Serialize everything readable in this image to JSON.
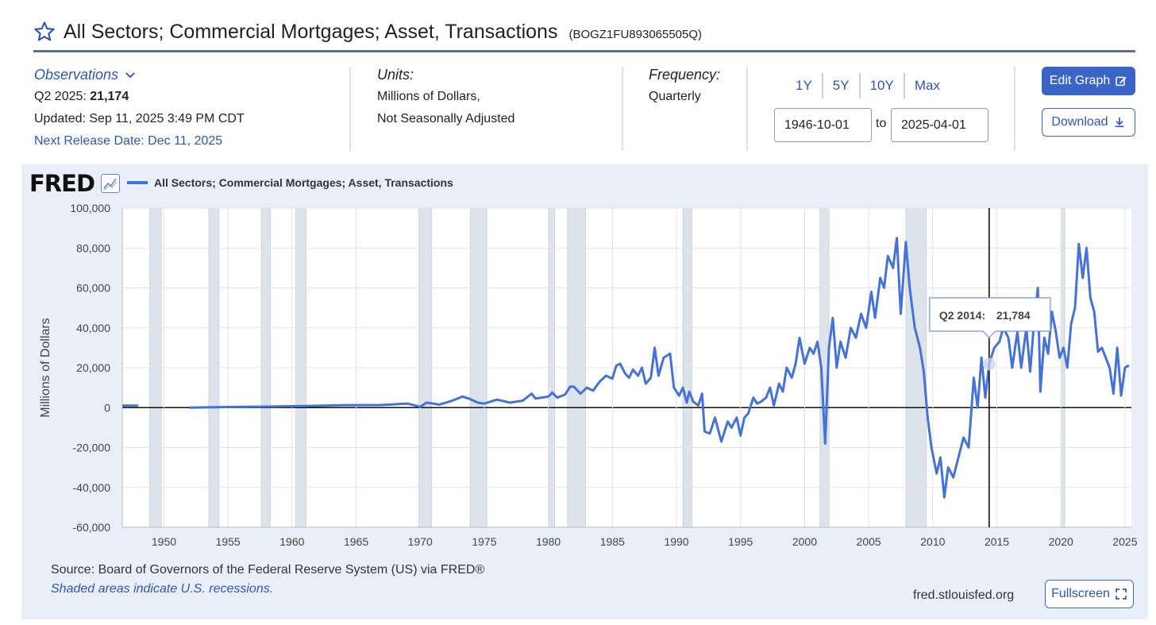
{
  "header": {
    "title": "All Sectors; Commercial Mortgages; Asset, Transactions",
    "series_id": "(BOGZ1FU893065505Q)"
  },
  "observations": {
    "label": "Observations",
    "period_label": "Q2 2025:",
    "value": "21,174",
    "updated": "Updated: Sep 11, 2025 3:49 PM CDT",
    "next_release": "Next Release Date: Dec 11, 2025"
  },
  "units": {
    "label": "Units:",
    "line1": "Millions of Dollars,",
    "line2": "Not Seasonally Adjusted"
  },
  "frequency": {
    "label": "Frequency:",
    "value": "Quarterly"
  },
  "range": {
    "buttons": [
      "1Y",
      "5Y",
      "10Y",
      "Max"
    ],
    "start": "1946-10-01",
    "to": "to",
    "end": "2025-04-01"
  },
  "actions": {
    "edit_graph": "Edit Graph",
    "download": "Download",
    "fullscreen": "Fullscreen"
  },
  "footer": {
    "source": "Source: Board of Governors of the Federal Reserve System (US) via FRED®",
    "shaded_note": "Shaded areas indicate U.S. recessions.",
    "site": "fred.stlouisfed.org"
  },
  "brand": {
    "logo": "FRED"
  },
  "colors": {
    "accent": "#3b64c8",
    "series": "#4472d8",
    "panel": "#e9eff9",
    "recession": "#dde3ea"
  },
  "chart_data": {
    "type": "line",
    "legend": "All Sectors; Commercial Mortgages; Asset, Transactions",
    "ylabel": "Millions of Dollars",
    "ylim": [
      -60000,
      100000
    ],
    "xlim": [
      1946.75,
      2025.5
    ],
    "yticks": [
      100000,
      80000,
      60000,
      40000,
      20000,
      0,
      -20000,
      -40000,
      -60000
    ],
    "ytick_labels": [
      "100,000",
      "80,000",
      "60,000",
      "40,000",
      "20,000",
      "0",
      "-20,000",
      "-40,000",
      "-60,000"
    ],
    "xticks": [
      1950,
      1955,
      1960,
      1965,
      1970,
      1975,
      1980,
      1985,
      1990,
      1995,
      2000,
      2005,
      2010,
      2015,
      2020,
      2025
    ],
    "xtick_labels": [
      "1950",
      "1955",
      "1960",
      "1965",
      "1970",
      "1975",
      "1980",
      "1985",
      "1990",
      "1995",
      "2000",
      "2005",
      "2010",
      "2015",
      "2020",
      "2025"
    ],
    "grid": true,
    "recessions": [
      [
        1948.9,
        1949.8
      ],
      [
        1953.5,
        1954.3
      ],
      [
        1957.6,
        1958.3
      ],
      [
        1960.3,
        1961.1
      ],
      [
        1969.9,
        1970.9
      ],
      [
        1973.9,
        1975.2
      ],
      [
        1980.0,
        1980.5
      ],
      [
        1981.5,
        1982.9
      ],
      [
        1990.5,
        1991.2
      ],
      [
        2001.2,
        2001.9
      ],
      [
        2007.9,
        2009.5
      ],
      [
        2020.0,
        2020.3
      ]
    ],
    "series": [
      {
        "segments": [
          [
            [
              1946.75,
              1000
            ],
            [
              1947.0,
              1000
            ],
            [
              1947.5,
              1000
            ],
            [
              1948.0,
              1000
            ]
          ],
          [
            [
              1952.0,
              0
            ],
            [
              1955.0,
              300
            ],
            [
              1958.0,
              500
            ],
            [
              1961.0,
              800
            ],
            [
              1964.0,
              1200
            ],
            [
              1967.0,
              1300
            ],
            [
              1969.0,
              2000
            ],
            [
              1970.0,
              400
            ],
            [
              1970.5,
              2500
            ],
            [
              1971.5,
              1500
            ],
            [
              1972.5,
              3500
            ],
            [
              1973.3,
              5500
            ],
            [
              1973.8,
              4500
            ],
            [
              1974.5,
              2500
            ],
            [
              1975.0,
              2000
            ],
            [
              1976.0,
              4000
            ],
            [
              1977.0,
              2500
            ],
            [
              1978.0,
              3500
            ],
            [
              1978.7,
              7000
            ],
            [
              1979.0,
              4500
            ],
            [
              1980.0,
              5500
            ],
            [
              1980.3,
              7500
            ],
            [
              1980.7,
              5000
            ],
            [
              1981.3,
              6500
            ],
            [
              1981.7,
              10500
            ],
            [
              1982.0,
              10500
            ],
            [
              1982.5,
              7000
            ],
            [
              1983.0,
              10000
            ],
            [
              1983.5,
              8500
            ],
            [
              1984.0,
              13000
            ],
            [
              1984.5,
              16000
            ],
            [
              1985.0,
              14500
            ],
            [
              1985.3,
              21000
            ],
            [
              1985.6,
              22000
            ],
            [
              1986.0,
              17000
            ],
            [
              1986.3,
              15000
            ],
            [
              1986.6,
              19000
            ],
            [
              1987.0,
              16000
            ],
            [
              1987.3,
              20000
            ],
            [
              1987.6,
              12000
            ],
            [
              1988.0,
              15000
            ],
            [
              1988.3,
              30000
            ],
            [
              1988.6,
              16000
            ],
            [
              1989.0,
              25000
            ],
            [
              1989.5,
              27000
            ],
            [
              1989.8,
              10000
            ],
            [
              1990.2,
              6000
            ],
            [
              1990.5,
              10000
            ],
            [
              1990.8,
              2500
            ],
            [
              1991.0,
              8000
            ],
            [
              1991.3,
              3000
            ],
            [
              1991.7,
              1000
            ],
            [
              1992.0,
              7000
            ],
            [
              1992.2,
              -12000
            ],
            [
              1992.6,
              -13000
            ],
            [
              1993.0,
              -5000
            ],
            [
              1993.5,
              -17000
            ],
            [
              1994.0,
              -7000
            ],
            [
              1994.3,
              -10000
            ],
            [
              1994.7,
              -5000
            ],
            [
              1995.0,
              -14000
            ],
            [
              1995.3,
              -5000
            ],
            [
              1995.6,
              -3000
            ],
            [
              1996.0,
              5000
            ],
            [
              1996.3,
              2000
            ],
            [
              1996.6,
              3000
            ],
            [
              1997.0,
              5000
            ],
            [
              1997.3,
              10000
            ],
            [
              1997.6,
              1000
            ],
            [
              1998.0,
              12000
            ],
            [
              1998.3,
              8000
            ],
            [
              1998.6,
              20000
            ],
            [
              1999.0,
              15000
            ],
            [
              1999.3,
              22000
            ],
            [
              1999.6,
              35000
            ],
            [
              2000.0,
              22000
            ],
            [
              2000.4,
              30000
            ],
            [
              2000.7,
              27000
            ],
            [
              2001.0,
              33000
            ],
            [
              2001.3,
              20000
            ],
            [
              2001.6,
              -18000
            ],
            [
              2001.9,
              30000
            ],
            [
              2002.2,
              45000
            ],
            [
              2002.5,
              20000
            ],
            [
              2002.8,
              33000
            ],
            [
              2003.2,
              25000
            ],
            [
              2003.6,
              40000
            ],
            [
              2004.0,
              35000
            ],
            [
              2004.4,
              47000
            ],
            [
              2004.8,
              40000
            ],
            [
              2005.2,
              58000
            ],
            [
              2005.5,
              45000
            ],
            [
              2005.9,
              65000
            ],
            [
              2006.2,
              60000
            ],
            [
              2006.5,
              76000
            ],
            [
              2006.9,
              70000
            ],
            [
              2007.2,
              85000
            ],
            [
              2007.5,
              47000
            ],
            [
              2007.9,
              83000
            ],
            [
              2008.2,
              60000
            ],
            [
              2008.6,
              40000
            ],
            [
              2009.0,
              30000
            ],
            [
              2009.3,
              18000
            ],
            [
              2009.6,
              -5000
            ],
            [
              2009.9,
              -20000
            ],
            [
              2010.3,
              -33000
            ],
            [
              2010.6,
              -25000
            ],
            [
              2010.9,
              -45000
            ],
            [
              2011.2,
              -30000
            ],
            [
              2011.6,
              -35000
            ],
            [
              2012.0,
              -25000
            ],
            [
              2012.4,
              -15000
            ],
            [
              2012.8,
              -20000
            ],
            [
              2013.2,
              15000
            ],
            [
              2013.5,
              0
            ],
            [
              2013.8,
              25000
            ],
            [
              2014.1,
              5000
            ],
            [
              2014.4,
              21784
            ],
            [
              2014.8,
              30000
            ],
            [
              2015.2,
              33000
            ],
            [
              2015.5,
              40000
            ],
            [
              2015.9,
              35000
            ],
            [
              2016.2,
              20000
            ],
            [
              2016.6,
              38000
            ],
            [
              2016.9,
              20000
            ],
            [
              2017.3,
              40000
            ],
            [
              2017.6,
              18000
            ],
            [
              2017.9,
              42000
            ],
            [
              2018.2,
              60000
            ],
            [
              2018.4,
              8000
            ],
            [
              2018.7,
              35000
            ],
            [
              2019.0,
              27000
            ],
            [
              2019.3,
              48000
            ],
            [
              2019.6,
              38000
            ],
            [
              2019.9,
              25000
            ],
            [
              2020.2,
              30000
            ],
            [
              2020.5,
              20000
            ],
            [
              2020.8,
              42000
            ],
            [
              2021.1,
              50000
            ],
            [
              2021.4,
              82000
            ],
            [
              2021.7,
              65000
            ],
            [
              2022.0,
              80000
            ],
            [
              2022.3,
              55000
            ],
            [
              2022.6,
              48000
            ],
            [
              2022.9,
              28000
            ],
            [
              2023.2,
              30000
            ],
            [
              2023.5,
              25000
            ],
            [
              2023.8,
              20000
            ],
            [
              2024.1,
              7000
            ],
            [
              2024.4,
              30000
            ],
            [
              2024.7,
              6000
            ],
            [
              2025.0,
              20000
            ],
            [
              2025.3,
              21174
            ]
          ]
        ]
      }
    ],
    "tooltip": {
      "label": "Q2 2014:",
      "value": "21,784",
      "x": 2014.4,
      "y": 21784
    }
  }
}
